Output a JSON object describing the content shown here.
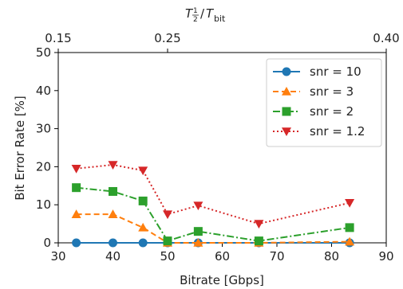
{
  "chart_data": {
    "type": "line",
    "xlabel": "Bitrate [Gbps]",
    "ylabel": "Bit Error Rate [%]",
    "xlim": [
      30,
      90
    ],
    "ylim": [
      0,
      50
    ],
    "x_ticks": [
      "30",
      "40",
      "50",
      "60",
      "70",
      "80",
      "90"
    ],
    "y_ticks": [
      "0",
      "10",
      "20",
      "30",
      "40",
      "50"
    ],
    "top_axis": {
      "label": "T½/Tbit",
      "tick_labels": [
        "0.15",
        "0.25",
        "0.40"
      ],
      "tick_positions_bitrate": [
        30,
        50,
        90
      ]
    },
    "grid": false,
    "legend_position": "top-right",
    "series": [
      {
        "name": "snr = 10",
        "color": "#1f77b4",
        "marker": "circle",
        "line_style": "solid",
        "x": [
          33.3,
          40,
          45.5,
          50,
          55.6,
          66.7,
          83.3
        ],
        "y": [
          0,
          0,
          0,
          0,
          0,
          0,
          0
        ]
      },
      {
        "name": "snr = 3",
        "color": "#ff7f0e",
        "marker": "triangle-up",
        "line_style": "dashed",
        "x": [
          33.3,
          40,
          45.5,
          50,
          55.6,
          66.7,
          83.3
        ],
        "y": [
          7.5,
          7.5,
          4,
          0,
          0,
          0,
          0.3
        ]
      },
      {
        "name": "snr = 2",
        "color": "#2ca02c",
        "marker": "square",
        "line_style": "dashdot",
        "x": [
          33.3,
          40,
          45.5,
          50,
          55.6,
          66.7,
          83.3
        ],
        "y": [
          14.5,
          13.5,
          11,
          0.5,
          3,
          0.5,
          4
        ]
      },
      {
        "name": "snr = 1.2",
        "color": "#d62728",
        "marker": "triangle-down",
        "line_style": "dotted",
        "x": [
          33.3,
          40,
          45.5,
          50,
          55.6,
          66.7,
          83.3
        ],
        "y": [
          19.5,
          20.5,
          19,
          7.5,
          9.8,
          5,
          10.5
        ]
      }
    ]
  }
}
